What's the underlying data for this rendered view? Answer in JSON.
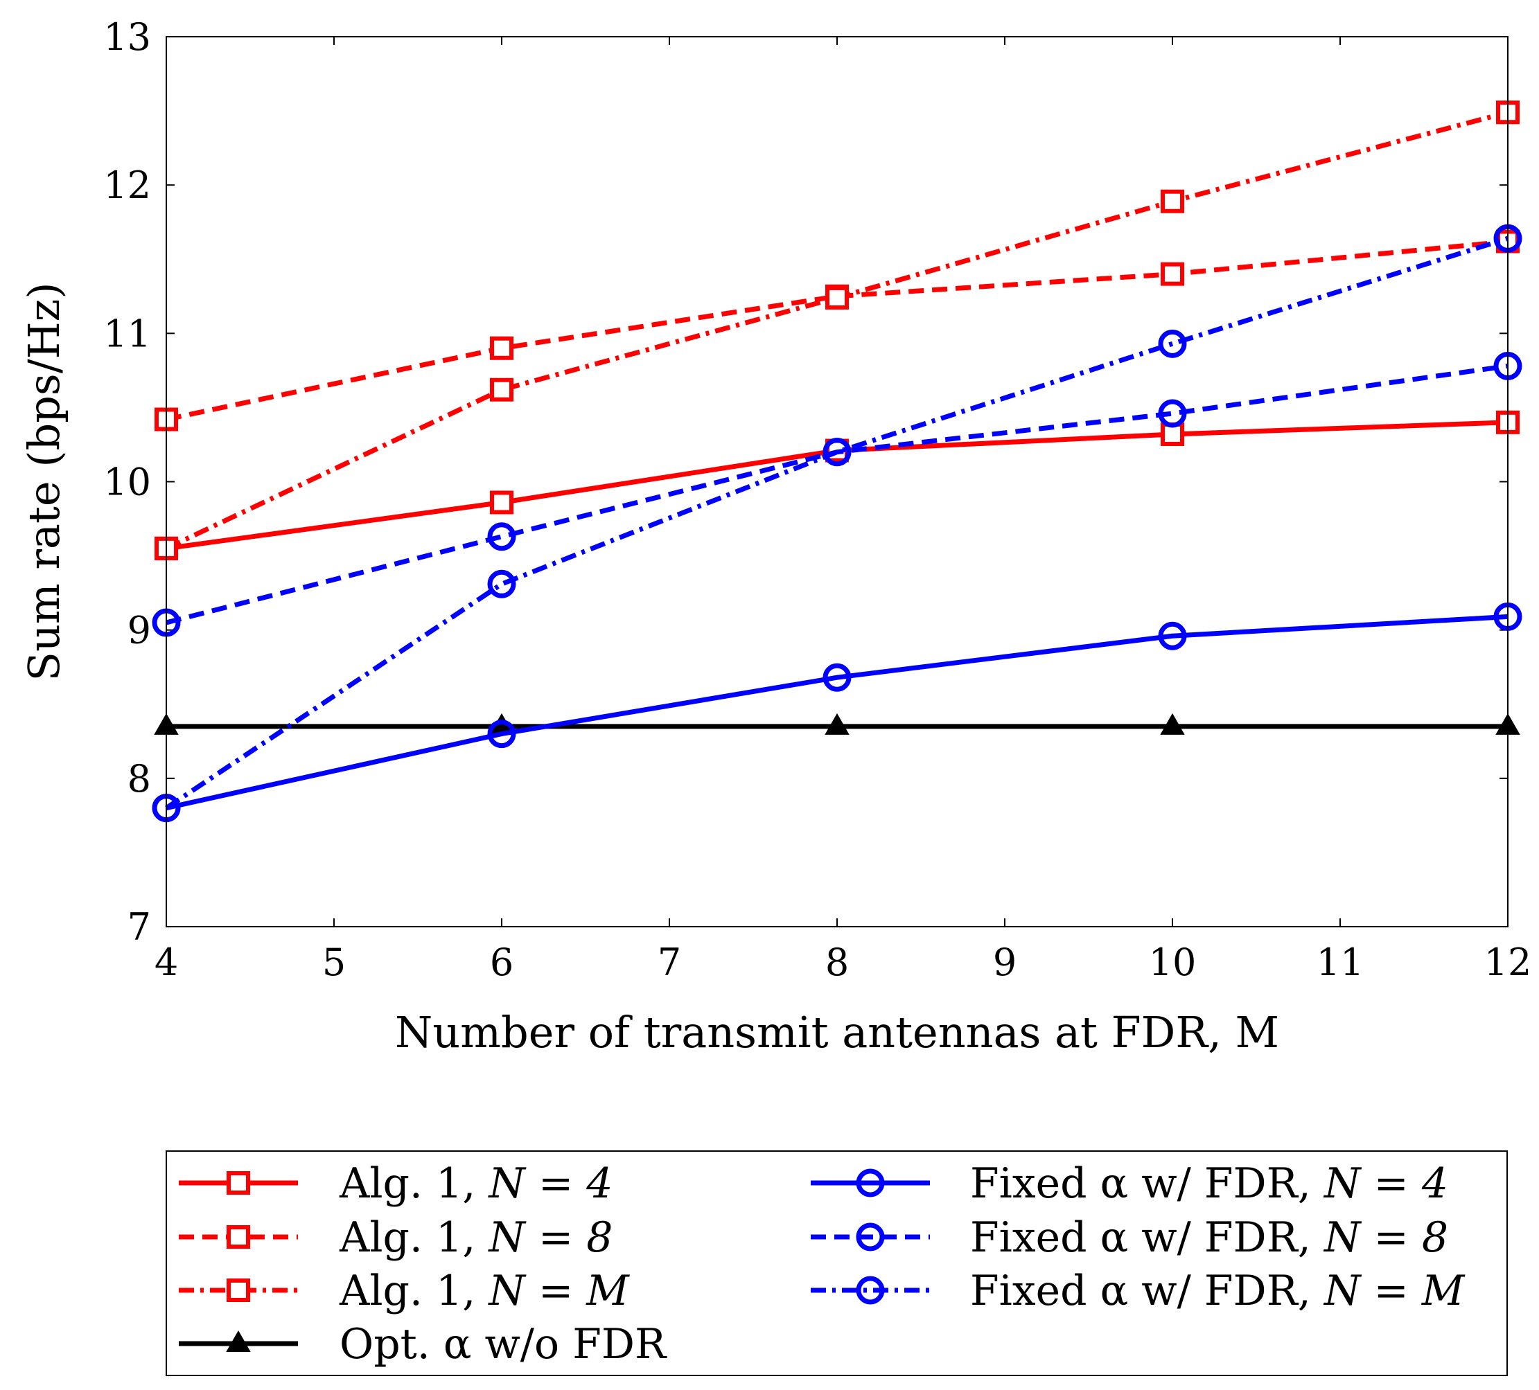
{
  "chart_data": {
    "type": "line",
    "title": "",
    "xlabel": "Number of transmit antennas at FDR, M",
    "ylabel": "Sum rate (bps/Hz)",
    "xlim": [
      4,
      12
    ],
    "ylim": [
      7,
      13
    ],
    "xticks": [
      4,
      5,
      6,
      7,
      8,
      9,
      10,
      11,
      12
    ],
    "yticks": [
      7,
      8,
      9,
      10,
      11,
      12,
      13
    ],
    "grid": false,
    "legend_position": "bottom-outside",
    "x": [
      4,
      6,
      8,
      10,
      12
    ],
    "series": [
      {
        "name": "Alg. 1, N = 4",
        "color": "#ff0000",
        "dash": "solid",
        "marker": "square",
        "values": [
          9.55,
          9.86,
          10.21,
          10.32,
          10.4
        ]
      },
      {
        "name": "Alg. 1, N = 8",
        "color": "#ff0000",
        "dash": "dashed",
        "marker": "square",
        "values": [
          10.42,
          10.9,
          11.25,
          11.4,
          11.62
        ]
      },
      {
        "name": "Alg. 1, N = M",
        "color": "#ff0000",
        "dash": "dashdot",
        "marker": "square",
        "values": [
          9.55,
          10.62,
          11.24,
          11.89,
          12.49
        ]
      },
      {
        "name": "Opt. α w/o FDR",
        "color": "#000000",
        "dash": "solid",
        "marker": "triangle",
        "values": [
          8.35,
          8.35,
          8.35,
          8.35,
          8.35
        ]
      },
      {
        "name": "Fixed α w/ FDR, N = 4",
        "color": "#0000ff",
        "dash": "solid",
        "marker": "circle",
        "values": [
          7.8,
          8.3,
          8.68,
          8.96,
          9.09
        ]
      },
      {
        "name": "Fixed α w/ FDR, N = 8",
        "color": "#0000ff",
        "dash": "dashed",
        "marker": "circle",
        "values": [
          9.05,
          9.63,
          10.2,
          10.46,
          10.78
        ]
      },
      {
        "name": "Fixed α w/ FDR, N = M",
        "color": "#0000ff",
        "dash": "dashdot",
        "marker": "circle",
        "values": [
          7.8,
          9.31,
          10.2,
          10.93,
          11.64
        ]
      }
    ]
  },
  "legend": {
    "col1": [
      {
        "label": "Alg. 1, ",
        "math": "N = 4"
      },
      {
        "label": "Alg. 1, ",
        "math": "N = 8"
      },
      {
        "label": "Alg. 1, ",
        "math": "N = M"
      },
      {
        "label": "Opt. α w/o FDR",
        "math": ""
      }
    ],
    "col2": [
      {
        "label": "Fixed α w/ FDR, ",
        "math": "N = 4"
      },
      {
        "label": "Fixed α w/ FDR, ",
        "math": "N = 8"
      },
      {
        "label": "Fixed α w/ FDR, ",
        "math": "N = M"
      }
    ]
  }
}
